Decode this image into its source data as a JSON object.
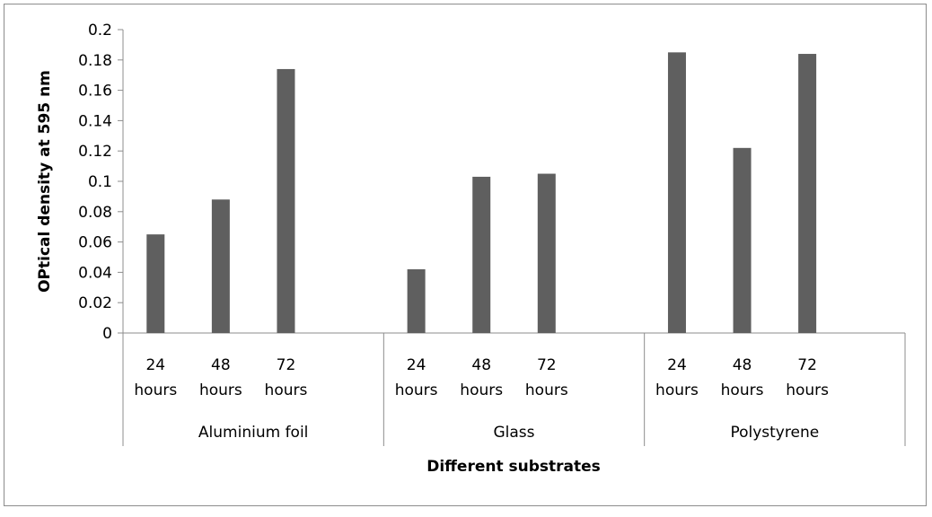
{
  "chart_data": {
    "type": "bar",
    "title": "",
    "xlabel": "Different substrates",
    "ylabel": "OPtical density at 595 nm",
    "ylim": [
      0,
      0.2
    ],
    "yticks": [
      "0",
      "0.02",
      "0.04",
      "0.06",
      "0.08",
      "0.1",
      "0.12",
      "0.14",
      "0.16",
      "0.18",
      "0.2"
    ],
    "grid": false,
    "legend": "none",
    "bar_color": "#5f5f5f",
    "groups": [
      {
        "name": "Aluminium foil",
        "bars": [
          {
            "label_line1": "24",
            "label_line2": "hours",
            "value": 0.065
          },
          {
            "label_line1": "48",
            "label_line2": "hours",
            "value": 0.088
          },
          {
            "label_line1": "72",
            "label_line2": "hours",
            "value": 0.174
          }
        ]
      },
      {
        "name": "Glass",
        "bars": [
          {
            "label_line1": "24",
            "label_line2": "hours",
            "value": 0.042
          },
          {
            "label_line1": "48",
            "label_line2": "hours",
            "value": 0.103
          },
          {
            "label_line1": "72",
            "label_line2": "hours",
            "value": 0.105
          }
        ]
      },
      {
        "name": "Polystyrene",
        "bars": [
          {
            "label_line1": "24",
            "label_line2": "hours",
            "value": 0.185
          },
          {
            "label_line1": "48",
            "label_line2": "hours",
            "value": 0.122
          },
          {
            "label_line1": "72",
            "label_line2": "hours",
            "value": 0.184
          }
        ]
      }
    ]
  }
}
